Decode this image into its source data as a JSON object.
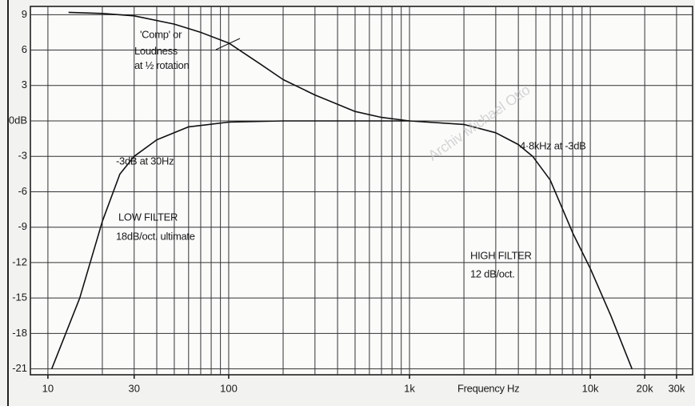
{
  "chart_data": {
    "type": "line",
    "x_label": "Frequency Hz",
    "log_x": true,
    "grid": true,
    "xlim": [
      8,
      36800
    ],
    "ylim": [
      -21.5,
      9.7
    ],
    "xticks": [
      10,
      30,
      100,
      {
        "value": 1000,
        "label": "1k"
      },
      {
        "value": 10000,
        "label": "10k"
      },
      {
        "value": 20000,
        "label": "20k"
      },
      {
        "value": 30000,
        "label": "30k"
      }
    ],
    "xgrid": [
      10,
      20,
      30,
      40,
      50,
      60,
      70,
      80,
      90,
      100,
      200,
      300,
      400,
      500,
      600,
      700,
      800,
      900,
      1000,
      2000,
      3000,
      4000,
      5000,
      6000,
      7000,
      8000,
      9000,
      10000,
      20000,
      30000
    ],
    "yticks": [
      9,
      6,
      3,
      {
        "value": 0,
        "label": "0dB"
      },
      -3,
      -6,
      -9,
      -12,
      -15,
      -18,
      -21
    ],
    "series": [
      {
        "color": "#111111",
        "x": [
          13,
          20,
          30,
          50,
          70,
          100,
          150,
          200,
          300,
          500,
          700,
          1000
        ],
        "values": [
          9.2,
          9.1,
          8.9,
          8.2,
          7.5,
          6.6,
          4.8,
          3.5,
          2.2,
          0.8,
          0.3,
          0
        ]
      },
      {
        "color": "#111111",
        "x": [
          10.5,
          15,
          20,
          25,
          30,
          40,
          60,
          100,
          200,
          1000,
          2000,
          3000,
          4000,
          4800,
          6000,
          8000,
          10000,
          13000,
          17000
        ],
        "values": [
          -21,
          -15,
          -8.5,
          -4.5,
          -3,
          -1.6,
          -0.5,
          -0.1,
          0,
          0,
          -0.3,
          -1,
          -2,
          -3,
          -5,
          -9.5,
          -12.5,
          -16.5,
          -21
        ]
      }
    ],
    "annotations": [
      "'Comp' or",
      "Loudness",
      "at ½ rotation",
      "-3dB at 30Hz",
      "4·8kHz at -3dB",
      "LOW FILTER",
      "18dB/oct. ultimate",
      "HIGH FILTER",
      "12 dB/oct.",
      "Archiv Michael Otto"
    ]
  }
}
